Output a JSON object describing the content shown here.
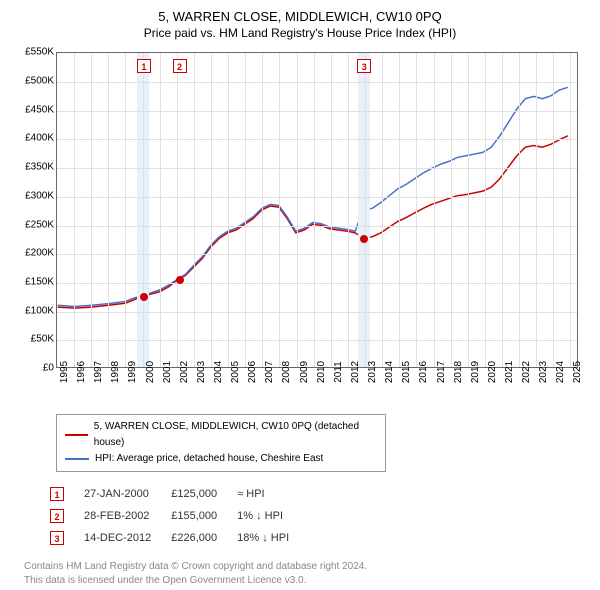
{
  "title": "5, WARREN CLOSE, MIDDLEWICH, CW10 0PQ",
  "subtitle": "Price paid vs. HM Land Registry's House Price Index (HPI)",
  "chart": {
    "type": "line",
    "background_color": "#ffffff",
    "grid_color": "#e0e0e0",
    "border_color": "#666666",
    "shaded_band_color": "#e8f0fa",
    "x_years": [
      1995,
      1996,
      1997,
      1998,
      1999,
      2000,
      2001,
      2002,
      2003,
      2004,
      2005,
      2006,
      2007,
      2008,
      2009,
      2010,
      2011,
      2012,
      2013,
      2014,
      2015,
      2016,
      2017,
      2018,
      2019,
      2020,
      2021,
      2022,
      2023,
      2024,
      2025
    ],
    "xlim": [
      1995,
      2025.5
    ],
    "ylim": [
      0,
      550000
    ],
    "ytick_step": 50000,
    "yticks": [
      "£0",
      "£50K",
      "£100K",
      "£150K",
      "£200K",
      "£250K",
      "£300K",
      "£350K",
      "£400K",
      "£450K",
      "£500K",
      "£550K"
    ],
    "label_fontsize": 10,
    "series": [
      {
        "name": "5, WARREN CLOSE, MIDDLEWICH, CW10 0PQ (detached house)",
        "color": "#cc0000",
        "line_width": 1.5,
        "data": [
          [
            1995,
            105000
          ],
          [
            1996,
            103000
          ],
          [
            1997,
            105000
          ],
          [
            1998,
            108000
          ],
          [
            1999,
            112000
          ],
          [
            1999.5,
            118000
          ],
          [
            2000.08,
            125000
          ],
          [
            2000.5,
            128000
          ],
          [
            2001,
            132000
          ],
          [
            2001.5,
            140000
          ],
          [
            2002.16,
            155000
          ],
          [
            2002.5,
            160000
          ],
          [
            2003,
            175000
          ],
          [
            2003.5,
            190000
          ],
          [
            2004,
            210000
          ],
          [
            2004.5,
            225000
          ],
          [
            2005,
            235000
          ],
          [
            2005.5,
            240000
          ],
          [
            2006,
            250000
          ],
          [
            2006.5,
            260000
          ],
          [
            2007,
            275000
          ],
          [
            2007.5,
            282000
          ],
          [
            2008,
            280000
          ],
          [
            2008.5,
            260000
          ],
          [
            2009,
            235000
          ],
          [
            2009.5,
            240000
          ],
          [
            2010,
            250000
          ],
          [
            2010.5,
            248000
          ],
          [
            2011,
            242000
          ],
          [
            2011.5,
            240000
          ],
          [
            2012,
            238000
          ],
          [
            2012.5,
            235000
          ],
          [
            2012.95,
            226000
          ],
          [
            2013.5,
            228000
          ],
          [
            2014,
            235000
          ],
          [
            2014.5,
            245000
          ],
          [
            2015,
            255000
          ],
          [
            2015.5,
            262000
          ],
          [
            2016,
            270000
          ],
          [
            2016.5,
            278000
          ],
          [
            2017,
            285000
          ],
          [
            2017.5,
            290000
          ],
          [
            2018,
            295000
          ],
          [
            2018.5,
            300000
          ],
          [
            2019,
            302000
          ],
          [
            2019.5,
            305000
          ],
          [
            2020,
            308000
          ],
          [
            2020.5,
            315000
          ],
          [
            2021,
            330000
          ],
          [
            2021.5,
            350000
          ],
          [
            2022,
            370000
          ],
          [
            2022.5,
            385000
          ],
          [
            2023,
            388000
          ],
          [
            2023.5,
            385000
          ],
          [
            2024,
            390000
          ],
          [
            2024.5,
            398000
          ],
          [
            2025,
            405000
          ]
        ]
      },
      {
        "name": "HPI: Average price, detached house, Cheshire East",
        "color": "#4472c4",
        "line_width": 1.5,
        "data": [
          [
            1995,
            108000
          ],
          [
            1996,
            106000
          ],
          [
            1997,
            108000
          ],
          [
            1998,
            111000
          ],
          [
            1999,
            115000
          ],
          [
            1999.5,
            121000
          ],
          [
            2000.08,
            126000
          ],
          [
            2000.5,
            130000
          ],
          [
            2001,
            135000
          ],
          [
            2001.5,
            143000
          ],
          [
            2002.16,
            156000
          ],
          [
            2002.5,
            162000
          ],
          [
            2003,
            178000
          ],
          [
            2003.5,
            193000
          ],
          [
            2004,
            213000
          ],
          [
            2004.5,
            228000
          ],
          [
            2005,
            238000
          ],
          [
            2005.5,
            243000
          ],
          [
            2006,
            253000
          ],
          [
            2006.5,
            263000
          ],
          [
            2007,
            278000
          ],
          [
            2007.5,
            285000
          ],
          [
            2008,
            283000
          ],
          [
            2008.5,
            263000
          ],
          [
            2009,
            238000
          ],
          [
            2009.5,
            243000
          ],
          [
            2010,
            253000
          ],
          [
            2010.5,
            251000
          ],
          [
            2011,
            245000
          ],
          [
            2011.5,
            243000
          ],
          [
            2012,
            241000
          ],
          [
            2012.5,
            238000
          ],
          [
            2012.95,
            275000
          ],
          [
            2013.5,
            278000
          ],
          [
            2014,
            288000
          ],
          [
            2014.5,
            300000
          ],
          [
            2015,
            312000
          ],
          [
            2015.5,
            320000
          ],
          [
            2016,
            330000
          ],
          [
            2016.5,
            340000
          ],
          [
            2017,
            348000
          ],
          [
            2017.5,
            355000
          ],
          [
            2018,
            360000
          ],
          [
            2018.5,
            367000
          ],
          [
            2019,
            370000
          ],
          [
            2019.5,
            373000
          ],
          [
            2020,
            376000
          ],
          [
            2020.5,
            385000
          ],
          [
            2021,
            405000
          ],
          [
            2021.5,
            428000
          ],
          [
            2022,
            452000
          ],
          [
            2022.5,
            470000
          ],
          [
            2023,
            474000
          ],
          [
            2023.5,
            470000
          ],
          [
            2024,
            475000
          ],
          [
            2024.5,
            485000
          ],
          [
            2025,
            490000
          ]
        ]
      }
    ],
    "markers": [
      {
        "n": "1",
        "year": 2000.08,
        "color": "#cc0000"
      },
      {
        "n": "2",
        "year": 2002.16,
        "color": "#cc0000"
      },
      {
        "n": "3",
        "year": 2012.95,
        "color": "#cc0000"
      }
    ],
    "sale_points": [
      {
        "year": 2000.08,
        "price": 125000,
        "color": "#cc0000"
      },
      {
        "year": 2002.16,
        "price": 155000,
        "color": "#cc0000"
      },
      {
        "year": 2012.95,
        "price": 226000,
        "color": "#cc0000"
      }
    ],
    "shaded_bands": [
      {
        "from": 1999.7,
        "to": 2000.4
      },
      {
        "from": 2012.6,
        "to": 2013.3
      }
    ]
  },
  "sales_table": {
    "rows": [
      {
        "n": "1",
        "date": "27-JAN-2000",
        "price": "£125,000",
        "diff": "≈ HPI",
        "color": "#cc0000"
      },
      {
        "n": "2",
        "date": "28-FEB-2002",
        "price": "£155,000",
        "diff": "1% ↓ HPI",
        "color": "#cc0000"
      },
      {
        "n": "3",
        "date": "14-DEC-2012",
        "price": "£226,000",
        "diff": "18% ↓ HPI",
        "color": "#cc0000"
      }
    ]
  },
  "footer": {
    "line1": "Contains HM Land Registry data © Crown copyright and database right 2024.",
    "line2": "This data is licensed under the Open Government Licence v3.0."
  }
}
